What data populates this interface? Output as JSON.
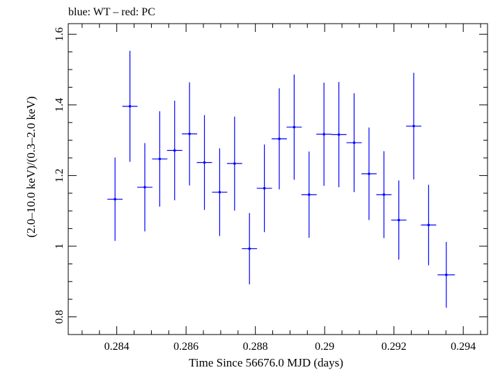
{
  "chart_data": {
    "type": "scatter",
    "title": "blue: WT – red: PC",
    "xlabel": "Time Since 56676.0 MJD (days)",
    "ylabel": "(2.0–10.0 keV)/(0.3–2.0 keV)",
    "xlim": [
      0.2826,
      0.2947
    ],
    "ylim": [
      0.75,
      1.63
    ],
    "x_ticks": [
      0.284,
      0.286,
      0.288,
      0.29,
      0.292,
      0.294
    ],
    "x_tick_labels": [
      "0.284",
      "0.286",
      "0.288",
      "0.29",
      "0.292",
      "0.294"
    ],
    "y_ticks": [
      0.8,
      1.0,
      1.2,
      1.4,
      1.6
    ],
    "y_tick_labels": [
      "0.8",
      "1",
      "1.2",
      "1.4",
      "1.6"
    ],
    "grid": false,
    "color": "#0000ff",
    "series": [
      {
        "x": [
          0.28395,
          0.28438,
          0.28481,
          0.28524,
          0.28567,
          0.2861,
          0.28653,
          0.28697,
          0.2874,
          0.28783,
          0.28826,
          0.28869,
          0.28912,
          0.28955,
          0.28998,
          0.29041,
          0.29085,
          0.29128,
          0.29171,
          0.29214,
          0.29257,
          0.293,
          0.29351
        ],
        "y": [
          1.133,
          1.396,
          1.167,
          1.247,
          1.271,
          1.318,
          1.237,
          1.153,
          1.234,
          0.993,
          1.164,
          1.304,
          1.337,
          1.146,
          1.317,
          1.316,
          1.293,
          1.205,
          1.146,
          1.074,
          1.34,
          1.06,
          0.919
        ],
        "xerr": [
          0.00022,
          0.00022,
          0.00022,
          0.00022,
          0.00022,
          0.00022,
          0.00022,
          0.00022,
          0.00022,
          0.00022,
          0.00022,
          0.00022,
          0.00022,
          0.00022,
          0.00022,
          0.00022,
          0.00022,
          0.00022,
          0.00022,
          0.00022,
          0.00022,
          0.00022,
          0.00025
        ],
        "yerr": [
          0.118,
          0.157,
          0.125,
          0.135,
          0.141,
          0.146,
          0.134,
          0.124,
          0.133,
          0.101,
          0.124,
          0.143,
          0.149,
          0.122,
          0.146,
          0.149,
          0.14,
          0.131,
          0.123,
          0.112,
          0.151,
          0.114,
          0.093
        ]
      }
    ]
  }
}
